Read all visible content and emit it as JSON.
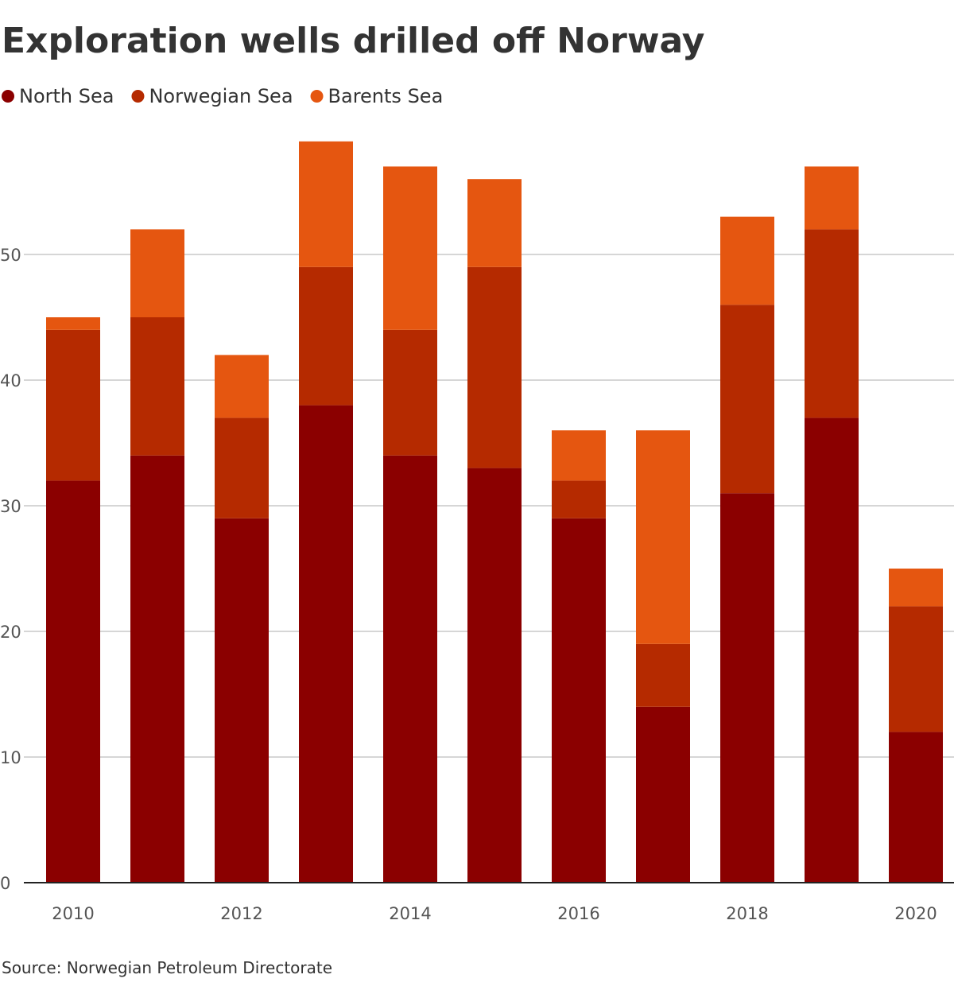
{
  "chart_data": {
    "type": "stacked_bar",
    "title": "Exploration wells drilled off Norway",
    "categories": [
      "2010",
      null,
      "2012",
      null,
      "2014",
      null,
      "2016",
      null,
      "2018",
      null,
      "2020"
    ],
    "series": [
      {
        "name": "North Sea",
        "color": "#8b0000",
        "values": [
          32,
          34,
          29,
          38,
          34,
          33,
          29,
          14,
          31,
          37,
          12
        ]
      },
      {
        "name": "Norwegian Sea",
        "color": "#b52a00",
        "values": [
          12,
          11,
          8,
          11,
          10,
          16,
          3,
          5,
          15,
          15,
          10
        ]
      },
      {
        "name": "Barents Sea",
        "color": "#e55610",
        "values": [
          1,
          7,
          5,
          10,
          13,
          7,
          4,
          17,
          7,
          5,
          3
        ]
      }
    ],
    "ylim": [
      0,
      60
    ],
    "yticks": [
      0,
      10,
      20,
      30,
      40,
      50
    ],
    "grid": true,
    "source": "Source: Norwegian Petroleum Directorate"
  }
}
